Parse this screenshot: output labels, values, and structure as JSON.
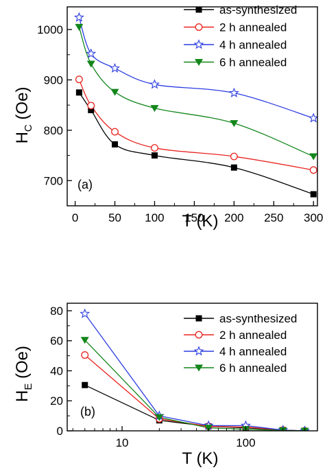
{
  "chart_data": [
    {
      "type": "line",
      "panel_label": "(a)",
      "xlabel": "T (K)",
      "ylabel_main": "H",
      "ylabel_sub": "C",
      "ylabel_tail": " (Oe)",
      "x_scale": "linear",
      "xlim": [
        -10,
        305
      ],
      "ylim": [
        650,
        1045
      ],
      "x_ticks": [
        0,
        50,
        100,
        150,
        200,
        250,
        300
      ],
      "x_tick_labels": [
        "0",
        "50",
        "100",
        "150",
        "200",
        "250",
        "300"
      ],
      "y_ticks": [
        700,
        800,
        900,
        1000
      ],
      "y_tick_labels": [
        "700",
        "800",
        "900",
        "1000"
      ],
      "legend_position": "top-right",
      "x": [
        5,
        20,
        50,
        100,
        200,
        300
      ],
      "series": [
        {
          "name": "as-synthesized",
          "marker": "square-filled",
          "line_color": "#000000",
          "marker_color": "#000000",
          "values": [
            875,
            840,
            772,
            750,
            726,
            673
          ]
        },
        {
          "name": "2 h annealed",
          "marker": "circle-open",
          "line_color": "#e8231e",
          "marker_color": "#e8231e",
          "values": [
            901,
            849,
            797,
            765,
            748,
            721
          ]
        },
        {
          "name": "4 h annealed",
          "marker": "star-open",
          "line_color": "#2b3ce0",
          "marker_color": "#2b3ce0",
          "values": [
            1024,
            952,
            923,
            891,
            874,
            824
          ]
        },
        {
          "name": "6 h annealed",
          "marker": "triangle-down-filled",
          "line_color": "#12861a",
          "marker_color": "#12861a",
          "values": [
            1005,
            932,
            876,
            844,
            814,
            748
          ]
        }
      ]
    },
    {
      "type": "line",
      "panel_label": "(b)",
      "xlabel": "T (K)",
      "ylabel_main": "H",
      "ylabel_sub": "E",
      "ylabel_tail": " (Oe)",
      "x_scale": "log",
      "xlim": [
        3.6,
        380
      ],
      "ylim": [
        0,
        85
      ],
      "x_ticks": [
        10,
        100
      ],
      "x_tick_labels": [
        "10",
        "100"
      ],
      "y_ticks": [
        0,
        20,
        40,
        60,
        80
      ],
      "y_tick_labels": [
        "0",
        "20",
        "40",
        "60",
        "80"
      ],
      "legend_position": "top-right",
      "x": [
        5,
        20,
        50,
        100,
        200,
        300
      ],
      "series": [
        {
          "name": "as-synthesized",
          "marker": "square-filled",
          "line_color": "#000000",
          "marker_color": "#000000",
          "values": [
            30.5,
            7,
            3,
            2,
            0.5,
            0
          ]
        },
        {
          "name": "2 h annealed",
          "marker": "circle-open",
          "line_color": "#e8231e",
          "marker_color": "#e8231e",
          "values": [
            50.5,
            8,
            3,
            2.5,
            0.5,
            0
          ]
        },
        {
          "name": "4 h annealed",
          "marker": "star-open",
          "line_color": "#2b3ce0",
          "marker_color": "#2b3ce0",
          "values": [
            78,
            10,
            3.5,
            3.5,
            0.5,
            0
          ]
        },
        {
          "name": "6 h annealed",
          "marker": "triangle-down-filled",
          "line_color": "#12861a",
          "marker_color": "#12861a",
          "values": [
            60.5,
            9,
            2,
            1,
            0.3,
            0
          ]
        }
      ]
    }
  ]
}
